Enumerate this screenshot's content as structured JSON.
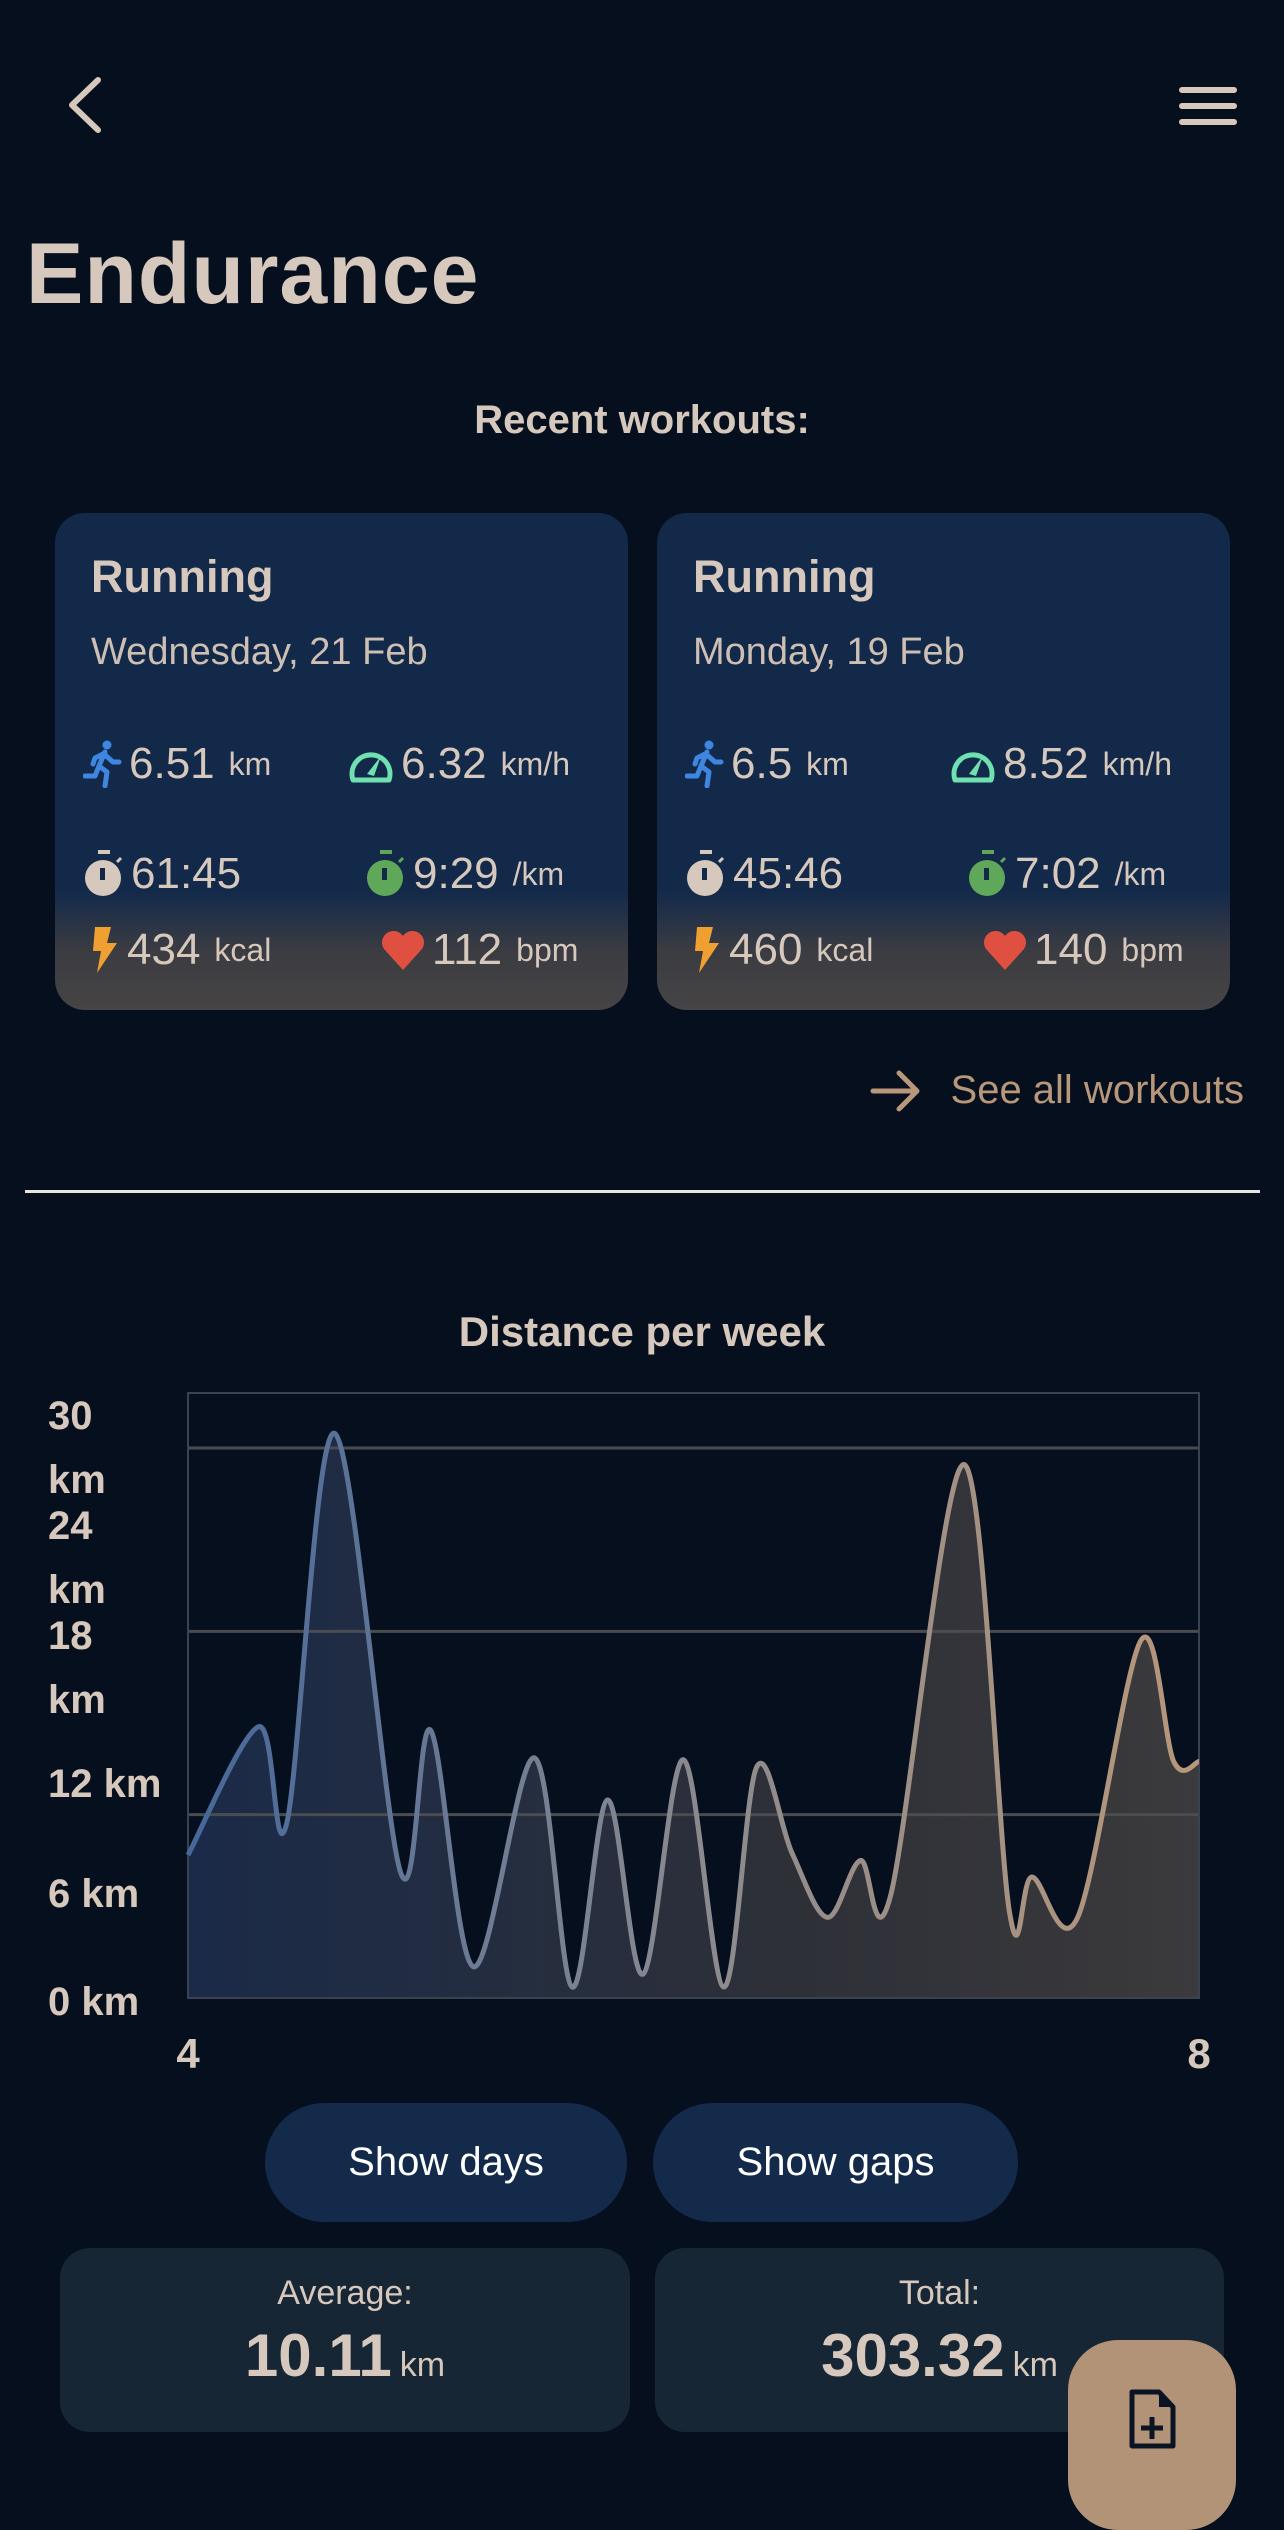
{
  "header": {
    "title": "Endurance",
    "back_icon": "chevron-left-icon",
    "menu_icon": "hamburger-menu-icon"
  },
  "recent": {
    "heading": "Recent workouts:",
    "see_all": "See all workouts",
    "workouts": [
      {
        "type": "Running",
        "date": "Wednesday, 21 Feb",
        "distance": "6.51",
        "distance_unit": "km",
        "speed": "6.32",
        "speed_unit": "km/h",
        "duration": "61:45",
        "pace": "9:29",
        "pace_unit": "/km",
        "calories": "434",
        "calories_unit": "kcal",
        "heart_rate": "112",
        "heart_rate_unit": "bpm"
      },
      {
        "type": "Running",
        "date": "Monday, 19 Feb",
        "distance": "6.5",
        "distance_unit": "km",
        "speed": "8.52",
        "speed_unit": "km/h",
        "duration": "45:46",
        "pace": "7:02",
        "pace_unit": "/km",
        "calories": "460",
        "calories_unit": "kcal",
        "heart_rate": "140",
        "heart_rate_unit": "bpm"
      }
    ]
  },
  "colors": {
    "accent": "#b8977a",
    "run": "#3f86e0",
    "speed": "#6fe0b0",
    "pace": "#5fa85a",
    "energy": "#f0a030",
    "heart": "#e05040"
  },
  "chart_data": {
    "type": "area",
    "title": "Distance per week",
    "y_tick_labels": [
      "30 km",
      "24 km",
      "18 km",
      "12 km",
      "6 km",
      "0 km"
    ],
    "x_tick_labels": [
      "4",
      "8"
    ],
    "xlim": [
      4,
      8
    ],
    "ylim": [
      0,
      33
    ],
    "gridlines": [
      10,
      20,
      30
    ],
    "x": [
      4,
      4.28,
      4.39,
      4.58,
      4.84,
      4.96,
      5.13,
      5.37,
      5.52,
      5.66,
      5.8,
      5.96,
      6.12,
      6.25,
      6.39,
      6.53,
      6.66,
      6.78,
      7.07,
      7.25,
      7.34,
      7.52,
      7.77,
      7.9,
      8
    ],
    "values": [
      7.8,
      14.8,
      9.5,
      30.8,
      6.9,
      14.6,
      1.7,
      13.1,
      0.6,
      10.8,
      1.3,
      13.0,
      0.6,
      12.6,
      7.9,
      4.4,
      7.5,
      5.6,
      29.1,
      4.7,
      6.6,
      4.4,
      19.5,
      12.9,
      12.9
    ]
  },
  "controls": {
    "show_days": "Show days",
    "show_gaps": "Show gaps"
  },
  "stats": {
    "average_label": "Average:",
    "average_value": "10.11",
    "average_unit": "km",
    "total_label": "Total:",
    "total_value": "303.32",
    "total_unit": "km"
  },
  "fab": {
    "icon": "add-document-icon"
  }
}
